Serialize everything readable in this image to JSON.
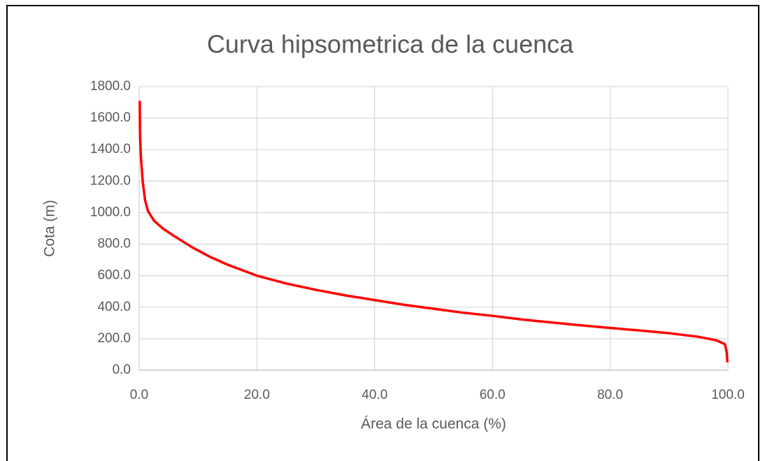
{
  "chart_data": {
    "type": "line",
    "title": "Curva hipsometrica de la cuenca",
    "x_label": "Área de la cuenca (%)",
    "y_label": "Cota (m)",
    "series": [
      {
        "name": "Curva hipsometrica",
        "color": "#ff0000",
        "x": [
          0.1,
          0.15,
          0.3,
          0.6,
          1,
          1.5,
          2.5,
          4,
          6,
          9,
          12,
          15,
          20,
          25,
          30,
          35,
          40,
          45,
          50,
          55,
          60,
          65,
          70,
          75,
          80,
          85,
          90,
          95,
          98,
          99.5,
          99.8,
          99.9
        ],
        "values": [
          1710,
          1500,
          1350,
          1200,
          1080,
          1010,
          950,
          900,
          850,
          780,
          720,
          670,
          600,
          550,
          510,
          475,
          445,
          415,
          390,
          365,
          345,
          322,
          303,
          285,
          268,
          252,
          235,
          212,
          190,
          165,
          110,
          50
        ]
      }
    ],
    "xlim": [
      0,
      100
    ],
    "xticks": [
      {
        "value": 0,
        "label": "0.0"
      },
      {
        "value": 20,
        "label": "20.0"
      },
      {
        "value": 40,
        "label": "40.0"
      },
      {
        "value": 60,
        "label": "60.0"
      },
      {
        "value": 80,
        "label": "80.0"
      },
      {
        "value": 100,
        "label": "100.0"
      }
    ],
    "ylim": [
      0,
      1800
    ],
    "yticks": [
      {
        "value": 0,
        "label": "0.0"
      },
      {
        "value": 200,
        "label": "200.0"
      },
      {
        "value": 400,
        "label": "400.0"
      },
      {
        "value": 600,
        "label": "600.0"
      },
      {
        "value": 800,
        "label": "800.0"
      },
      {
        "value": 1000,
        "label": "1000.0"
      },
      {
        "value": 1200,
        "label": "1200.0"
      },
      {
        "value": 1400,
        "label": "1400.0"
      },
      {
        "value": 1600,
        "label": "1600.0"
      },
      {
        "value": 1800,
        "label": "1800.0"
      }
    ],
    "grid": true
  }
}
